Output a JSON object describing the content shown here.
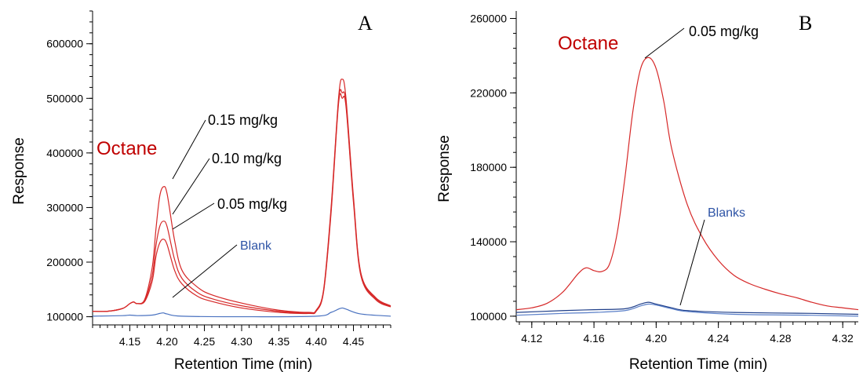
{
  "chart_data": [
    {
      "type": "line",
      "panel_label": "A",
      "xlabel": "Retention Time (min)",
      "ylabel": "Response",
      "xlim": [
        4.1,
        4.5
      ],
      "ylim": [
        85000,
        660000
      ],
      "xticks": [
        "4.15",
        "4.20",
        "4.25",
        "4.30",
        "4.35",
        "4.40",
        "4.45"
      ],
      "yticks": [
        "100000",
        "200000",
        "300000",
        "400000",
        "500000",
        "600000"
      ],
      "grid": false,
      "colors": {
        "samples": "#d62828",
        "blank": "#4a72c0",
        "compound_label": "#c00000",
        "blank_label": "#2e54a6"
      },
      "compound_label": "Octane",
      "series": [
        {
          "x": [
            4.1,
            4.12,
            4.14,
            4.15,
            4.155,
            4.16,
            4.17,
            4.18,
            4.185,
            4.19,
            4.195,
            4.2,
            4.21,
            4.22,
            4.24,
            4.26,
            4.3,
            4.35,
            4.39,
            4.4,
            4.41,
            4.42,
            4.43,
            4.435,
            4.44,
            4.45,
            4.46,
            4.48,
            4.5
          ],
          "y": [
            110000,
            110000,
            115000,
            124000,
            127000,
            124000,
            132000,
            190000,
            260000,
            320000,
            338000,
            325000,
            240000,
            185000,
            155000,
            140000,
            125000,
            112000,
            108000,
            112000,
            150000,
            300000,
            500000,
            535000,
            500000,
            320000,
            180000,
            135000,
            120000
          ]
        },
        {
          "x": [
            4.1,
            4.12,
            4.14,
            4.15,
            4.155,
            4.16,
            4.17,
            4.18,
            4.185,
            4.19,
            4.195,
            4.2,
            4.21,
            4.22,
            4.24,
            4.26,
            4.3,
            4.35,
            4.39,
            4.4,
            4.41,
            4.42,
            4.43,
            4.435,
            4.44,
            4.45,
            4.46,
            4.48,
            4.5
          ],
          "y": [
            110000,
            110000,
            115000,
            124000,
            127000,
            124000,
            130000,
            175000,
            230000,
            265000,
            275000,
            265000,
            205000,
            170000,
            145000,
            133000,
            120000,
            110000,
            107000,
            111000,
            148000,
            295000,
            495000,
            510000,
            490000,
            315000,
            178000,
            133000,
            119000
          ]
        },
        {
          "x": [
            4.1,
            4.12,
            4.14,
            4.15,
            4.155,
            4.16,
            4.17,
            4.18,
            4.185,
            4.19,
            4.195,
            4.2,
            4.21,
            4.22,
            4.24,
            4.26,
            4.3,
            4.35,
            4.39,
            4.4,
            4.41,
            4.42,
            4.43,
            4.435,
            4.44,
            4.45,
            4.46,
            4.48,
            4.5
          ],
          "y": [
            110000,
            110000,
            115000,
            124000,
            127000,
            124000,
            128000,
            165000,
            210000,
            235000,
            242000,
            232000,
            185000,
            160000,
            138000,
            128000,
            116000,
            108000,
            106000,
            110000,
            146000,
            290000,
            490000,
            500000,
            485000,
            310000,
            175000,
            131000,
            118000
          ]
        },
        {
          "x": [
            4.1,
            4.14,
            4.15,
            4.16,
            4.18,
            4.19,
            4.195,
            4.2,
            4.22,
            4.3,
            4.4,
            4.42,
            4.43,
            4.435,
            4.44,
            4.46,
            4.5
          ],
          "y": [
            101000,
            102000,
            103000,
            102000,
            103000,
            106000,
            107000,
            105000,
            101000,
            100000,
            101000,
            108000,
            114000,
            116000,
            114000,
            105000,
            101000
          ]
        }
      ],
      "annotations": [
        "0.15 mg/kg",
        "0.10 mg/kg",
        "0.05 mg/kg",
        "Blank"
      ]
    },
    {
      "type": "line",
      "panel_label": "B",
      "xlabel": "Retention Time (min)",
      "ylabel": "Response",
      "xlim": [
        4.11,
        4.33
      ],
      "ylim": [
        97000,
        264000
      ],
      "xticks": [
        "4.12",
        "4.16",
        "4.20",
        "4.24",
        "4.28",
        "4.32"
      ],
      "yticks": [
        "100000",
        "140000",
        "180000",
        "220000",
        "260000"
      ],
      "grid": false,
      "colors": {
        "samples": "#d62828",
        "blank1": "#1f3f8a",
        "blank2": "#5a7fc8",
        "compound_label": "#c00000",
        "blank_label": "#2e54a6"
      },
      "compound_label": "Octane",
      "series": [
        {
          "x": [
            4.11,
            4.12,
            4.13,
            4.14,
            4.15,
            4.155,
            4.16,
            4.165,
            4.17,
            4.175,
            4.18,
            4.185,
            4.19,
            4.195,
            4.2,
            4.205,
            4.21,
            4.22,
            4.23,
            4.24,
            4.25,
            4.26,
            4.27,
            4.28,
            4.29,
            4.3,
            4.31,
            4.32,
            4.33
          ],
          "y": [
            103500,
            104500,
            107000,
            113000,
            123000,
            126000,
            124500,
            124000,
            128000,
            145000,
            175000,
            210000,
            233000,
            239000,
            233000,
            215000,
            190000,
            160000,
            142000,
            130000,
            122000,
            117500,
            114500,
            112000,
            110000,
            107500,
            105500,
            104500,
            103500
          ]
        },
        {
          "x": [
            4.11,
            4.14,
            4.16,
            4.18,
            4.19,
            4.195,
            4.2,
            4.21,
            4.22,
            4.25,
            4.3,
            4.33
          ],
          "y": [
            102000,
            103000,
            103500,
            104000,
            106500,
            107500,
            106500,
            104500,
            103000,
            102000,
            101500,
            101000
          ]
        },
        {
          "x": [
            4.11,
            4.14,
            4.16,
            4.18,
            4.19,
            4.195,
            4.2,
            4.21,
            4.22,
            4.25,
            4.3,
            4.33
          ],
          "y": [
            100500,
            101500,
            102000,
            103000,
            105500,
            106500,
            106000,
            104000,
            102500,
            101000,
            100500,
            100000
          ]
        }
      ],
      "annotations": [
        "0.05 mg/kg",
        "Blanks"
      ]
    }
  ]
}
